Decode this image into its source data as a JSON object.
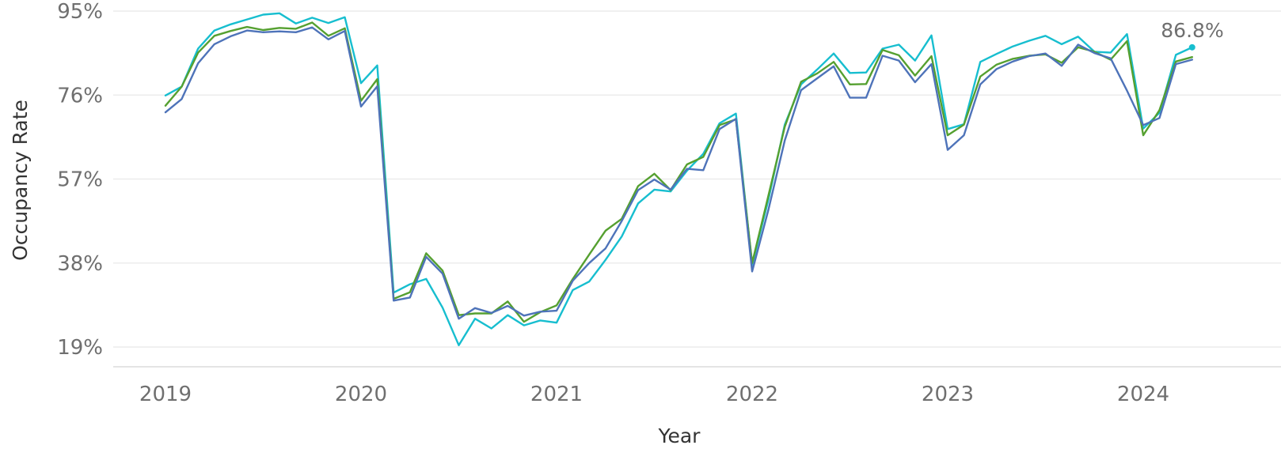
{
  "chart_data": {
    "type": "line",
    "title": "",
    "xlabel": "Year",
    "ylabel": "Occupancy Rate",
    "y_ticks": [
      "19%",
      "38%",
      "57%",
      "76%",
      "95%"
    ],
    "y_tick_values": [
      19,
      38,
      57,
      76,
      95
    ],
    "ylim": [
      15,
      96
    ],
    "x_ticks": [
      "2019",
      "2020",
      "2021",
      "2022",
      "2023",
      "2024"
    ],
    "x_tick_values": [
      2019,
      2020,
      2021,
      2022,
      2023,
      2024
    ],
    "xlim": [
      2018.72,
      2024.42
    ],
    "grid": true,
    "legend": "none",
    "end_label": "86.8%",
    "x": [
      2019.0,
      2019.083,
      2019.167,
      2019.25,
      2019.333,
      2019.417,
      2019.5,
      2019.583,
      2019.667,
      2019.75,
      2019.833,
      2019.917,
      2020.0,
      2020.083,
      2020.167,
      2020.25,
      2020.333,
      2020.417,
      2020.5,
      2020.583,
      2020.667,
      2020.75,
      2020.833,
      2020.917,
      2021.0,
      2021.083,
      2021.167,
      2021.25,
      2021.333,
      2021.417,
      2021.5,
      2021.583,
      2021.667,
      2021.75,
      2021.833,
      2021.917,
      2022.0,
      2022.083,
      2022.167,
      2022.25,
      2022.333,
      2022.417,
      2022.5,
      2022.583,
      2022.667,
      2022.75,
      2022.833,
      2022.917,
      2023.0,
      2023.083,
      2023.167,
      2023.25,
      2023.333,
      2023.417,
      2023.5,
      2023.583,
      2023.667,
      2023.75,
      2023.833,
      2023.917,
      2024.0,
      2024.083,
      2024.167,
      2024.25
    ],
    "series": [
      {
        "color": "#17becf",
        "values": [
          75.9,
          77.9,
          86.5,
          90.6,
          92.0,
          93.1,
          94.2,
          94.5,
          92.2,
          93.5,
          92.3,
          93.6,
          78.7,
          82.7,
          31.3,
          33.2,
          34.4,
          27.9,
          19.4,
          25.4,
          23.2,
          26.2,
          23.9,
          25.0,
          24.5,
          31.9,
          33.8,
          38.7,
          44.0,
          51.5,
          54.6,
          54.2,
          58.9,
          62.7,
          69.6,
          71.8,
          37.6,
          52.3,
          69.3,
          78.4,
          81.8,
          85.4,
          81.0,
          81.1,
          86.5,
          87.4,
          83.8,
          89.5,
          68.3,
          69.4,
          83.5,
          85.3,
          87.0,
          88.3,
          89.4,
          87.5,
          89.2,
          85.8,
          85.6,
          89.8,
          68.4,
          72.0,
          85.1,
          86.8
        ]
      },
      {
        "color": "#55a030",
        "values": [
          73.6,
          77.9,
          85.6,
          89.4,
          90.5,
          91.4,
          90.7,
          91.2,
          91.0,
          92.4,
          89.4,
          91.1,
          74.7,
          79.6,
          29.9,
          31.4,
          40.2,
          36.3,
          26.2,
          26.6,
          26.6,
          29.3,
          24.7,
          26.9,
          28.4,
          34.4,
          39.9,
          45.3,
          48.0,
          55.4,
          58.2,
          54.5,
          60.3,
          62.0,
          69.2,
          70.5,
          38.0,
          53.2,
          68.8,
          79.0,
          80.9,
          83.5,
          78.4,
          78.5,
          86.2,
          85.0,
          80.4,
          84.8,
          66.9,
          69.3,
          80.2,
          82.9,
          84.2,
          84.9,
          85.2,
          83.3,
          86.8,
          85.8,
          84.0,
          88.2,
          66.9,
          72.6,
          83.6,
          84.6
        ]
      },
      {
        "color": "#4e73b9",
        "values": [
          72.1,
          75.1,
          83.2,
          87.5,
          89.3,
          90.6,
          90.2,
          90.4,
          90.2,
          91.3,
          88.6,
          90.5,
          73.4,
          78.0,
          29.5,
          30.2,
          39.4,
          35.6,
          25.4,
          27.8,
          26.7,
          28.3,
          26.1,
          27.0,
          27.2,
          34.0,
          38.0,
          41.3,
          47.5,
          54.5,
          56.9,
          54.6,
          59.3,
          59.0,
          68.3,
          70.6,
          36.1,
          50.0,
          65.7,
          77.1,
          79.8,
          82.5,
          75.4,
          75.4,
          84.9,
          83.8,
          78.9,
          83.0,
          63.6,
          66.9,
          78.4,
          81.9,
          83.6,
          84.8,
          85.4,
          82.6,
          87.4,
          85.5,
          84.3,
          77.0,
          69.2,
          70.8,
          83.0,
          84.0
        ]
      }
    ]
  }
}
